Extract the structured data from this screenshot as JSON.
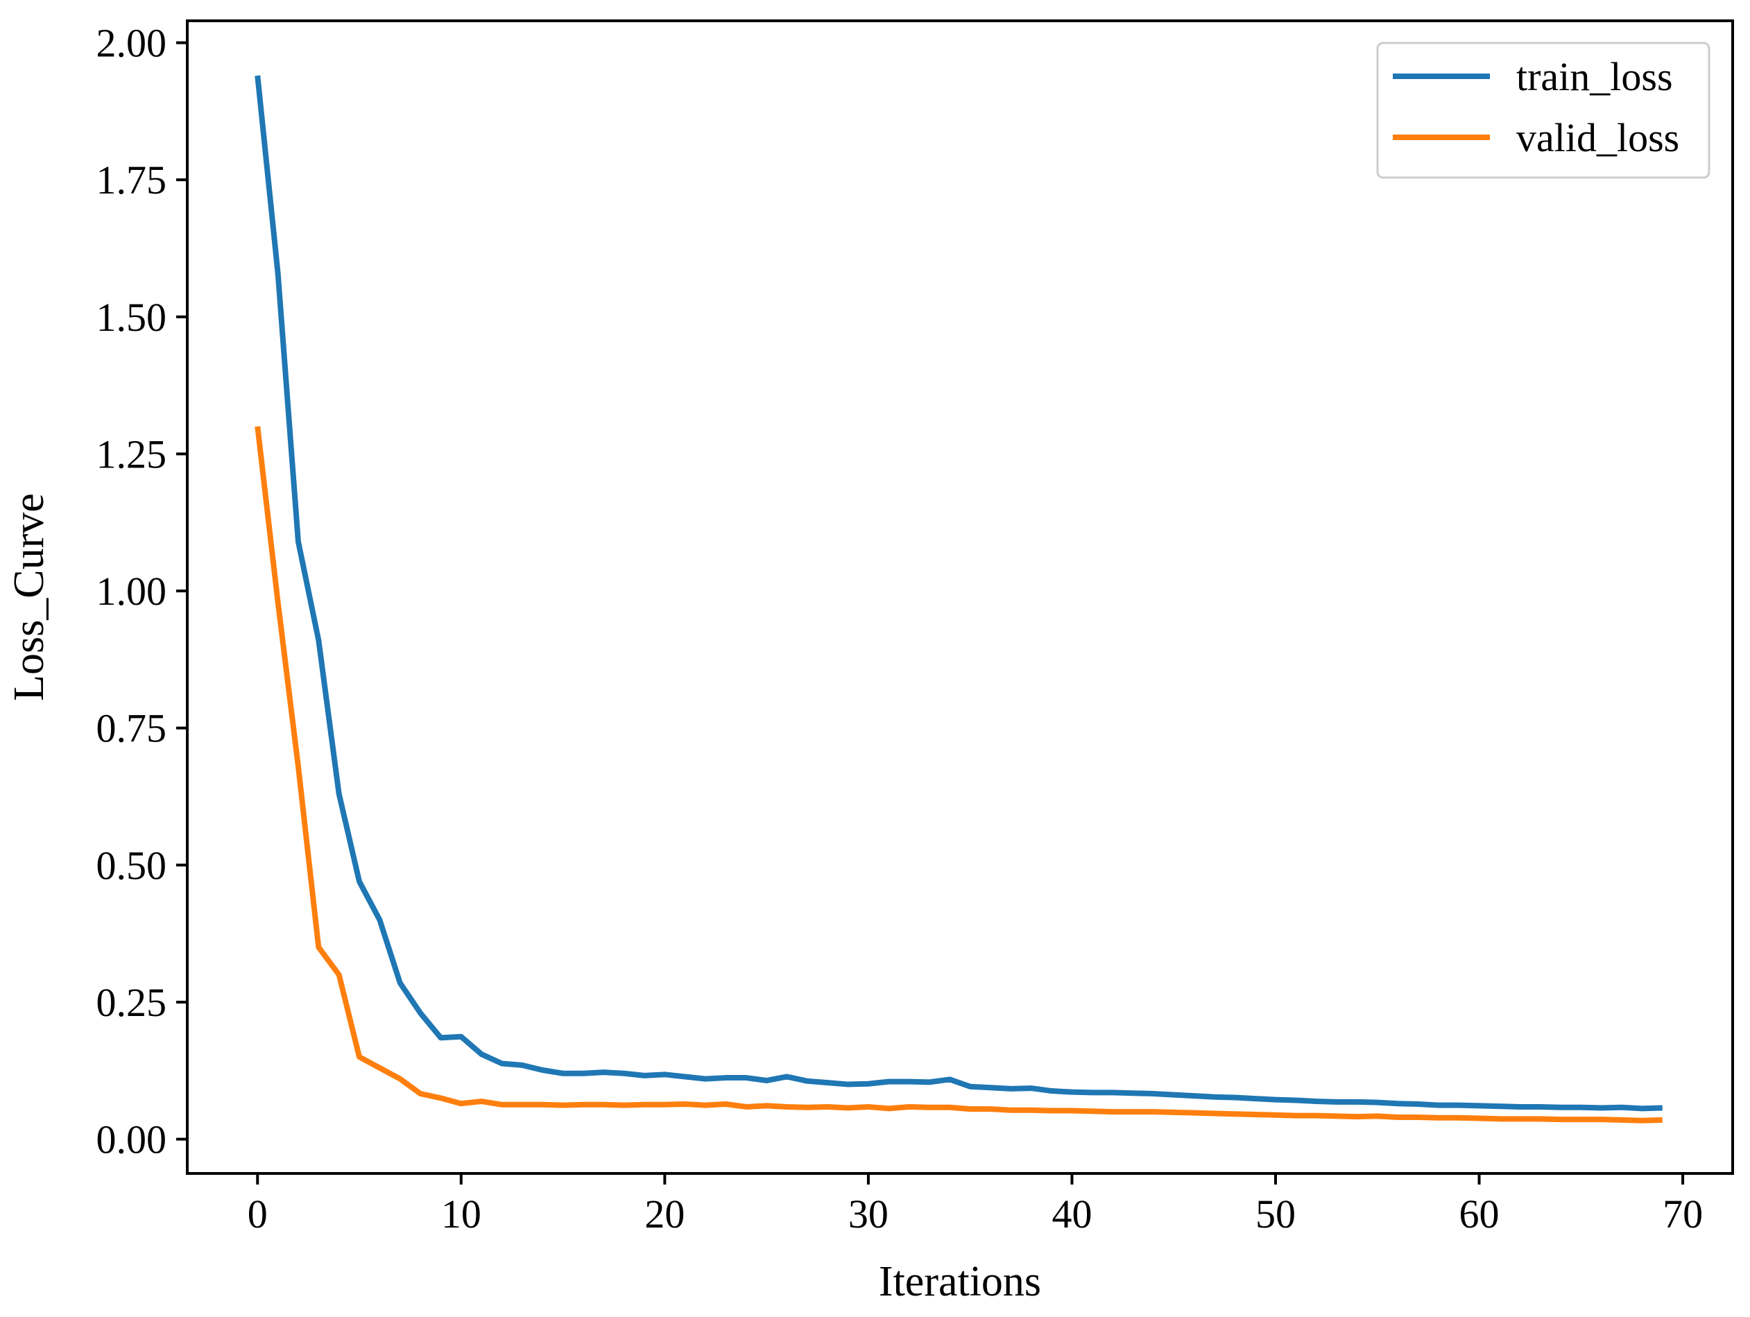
{
  "chart_data": {
    "type": "line",
    "title": "",
    "xlabel": "Iterations",
    "ylabel": "Loss_Curve",
    "xlim": [
      -3.45,
      72.45
    ],
    "ylim": [
      -0.0625,
      2.04
    ],
    "xticks": [
      0,
      10,
      20,
      30,
      40,
      50,
      60,
      70
    ],
    "xtick_labels": [
      "0",
      "10",
      "20",
      "30",
      "40",
      "50",
      "60",
      "70"
    ],
    "yticks": [
      0,
      0.25,
      0.5,
      0.75,
      1.0,
      1.25,
      1.5,
      1.75,
      2.0
    ],
    "ytick_labels": [
      "0.00",
      "0.25",
      "0.50",
      "0.75",
      "1.00",
      "1.25",
      "1.50",
      "1.75",
      "2.00"
    ],
    "grid": false,
    "legend_position": "top-right",
    "x": [
      0,
      1,
      2,
      3,
      4,
      5,
      6,
      7,
      8,
      9,
      10,
      11,
      12,
      13,
      14,
      15,
      16,
      17,
      18,
      19,
      20,
      21,
      22,
      23,
      24,
      25,
      26,
      27,
      28,
      29,
      30,
      31,
      32,
      33,
      34,
      35,
      36,
      37,
      38,
      39,
      40,
      41,
      42,
      43,
      44,
      45,
      46,
      47,
      48,
      49,
      50,
      51,
      52,
      53,
      54,
      55,
      56,
      57,
      58,
      59,
      60,
      61,
      62,
      63,
      64,
      65,
      66,
      67,
      68,
      69
    ],
    "series": [
      {
        "name": "train_loss",
        "color": "#1f77b4",
        "values": [
          1.94,
          1.58,
          1.09,
          0.91,
          0.63,
          0.47,
          0.4,
          0.285,
          0.23,
          0.185,
          0.187,
          0.155,
          0.138,
          0.135,
          0.126,
          0.12,
          0.12,
          0.122,
          0.12,
          0.116,
          0.118,
          0.114,
          0.11,
          0.112,
          0.112,
          0.107,
          0.114,
          0.106,
          0.103,
          0.1,
          0.101,
          0.105,
          0.105,
          0.104,
          0.109,
          0.096,
          0.094,
          0.092,
          0.093,
          0.088,
          0.086,
          0.085,
          0.085,
          0.084,
          0.083,
          0.081,
          0.079,
          0.077,
          0.076,
          0.074,
          0.072,
          0.071,
          0.069,
          0.068,
          0.068,
          0.067,
          0.065,
          0.064,
          0.062,
          0.062,
          0.061,
          0.06,
          0.059,
          0.059,
          0.058,
          0.058,
          0.057,
          0.058,
          0.056,
          0.057
        ]
      },
      {
        "name": "valid_loss",
        "color": "#ff7f0e",
        "values": [
          1.3,
          0.98,
          0.68,
          0.35,
          0.3,
          0.15,
          0.13,
          0.11,
          0.083,
          0.075,
          0.065,
          0.069,
          0.063,
          0.063,
          0.063,
          0.062,
          0.063,
          0.063,
          0.062,
          0.063,
          0.063,
          0.064,
          0.062,
          0.064,
          0.059,
          0.061,
          0.059,
          0.058,
          0.059,
          0.057,
          0.059,
          0.056,
          0.059,
          0.058,
          0.058,
          0.055,
          0.055,
          0.053,
          0.053,
          0.052,
          0.052,
          0.051,
          0.05,
          0.05,
          0.05,
          0.049,
          0.048,
          0.047,
          0.046,
          0.045,
          0.044,
          0.043,
          0.043,
          0.042,
          0.041,
          0.042,
          0.04,
          0.04,
          0.039,
          0.039,
          0.038,
          0.037,
          0.037,
          0.037,
          0.036,
          0.036,
          0.036,
          0.035,
          0.034,
          0.035
        ]
      }
    ]
  }
}
